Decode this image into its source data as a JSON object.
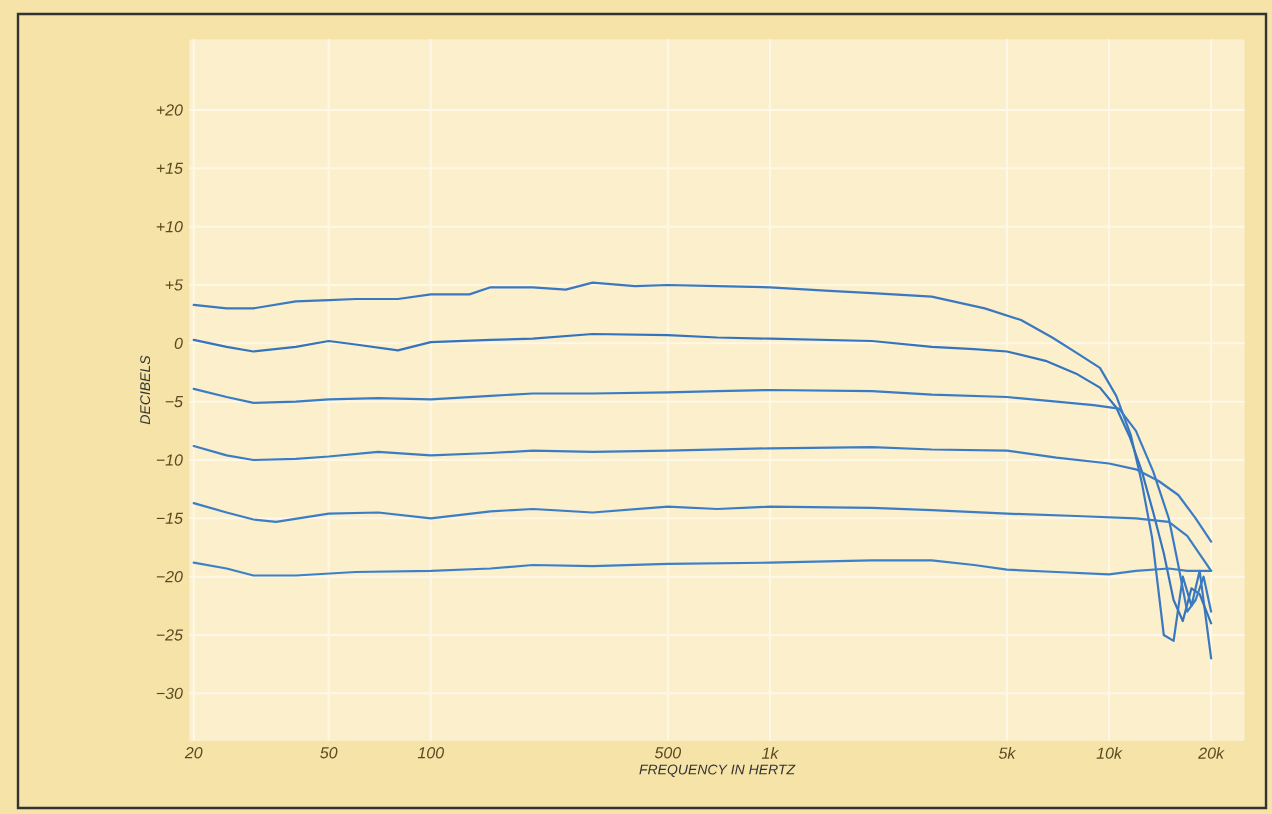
{
  "chart_data": {
    "type": "line",
    "xlabel": "FREQUENCY IN HERTZ",
    "ylabel": "DECIBELS",
    "log": "x",
    "grid": true,
    "marker": "none",
    "line_style": "solid",
    "xlim": [
      19.5,
      25000
    ],
    "ylim": [
      -34,
      26
    ],
    "xticks": [
      20,
      50,
      100,
      500,
      {
        "value": 1000,
        "label": "1k"
      },
      {
        "value": 5000,
        "label": "5k"
      },
      {
        "value": 10000,
        "label": "10k"
      },
      {
        "value": 20000,
        "label": "20k"
      }
    ],
    "yticks": [
      {
        "value": 20,
        "label": "+20"
      },
      {
        "value": 15,
        "label": "+15"
      },
      {
        "value": 10,
        "label": "+10"
      },
      {
        "value": 5,
        "label": "+5"
      },
      0,
      {
        "value": -5,
        "label": "−5"
      },
      {
        "value": -10,
        "label": "−10"
      },
      {
        "value": -15,
        "label": "−15"
      },
      {
        "value": -20,
        "label": "−20"
      },
      {
        "value": -25,
        "label": "−25"
      },
      {
        "value": -30,
        "label": "−30"
      }
    ],
    "series": [
      {
        "color": "#3a78c0",
        "x": [
          20,
          25,
          30,
          40,
          50,
          60,
          80,
          100,
          130,
          150,
          200,
          250,
          300,
          400,
          500,
          700,
          1000,
          1500,
          2000,
          3000,
          4300,
          5500,
          6800,
          8000,
          9400,
          10500,
          11600,
          12500,
          13400,
          14500,
          15500,
          16500,
          17500,
          18500,
          20000
        ],
        "values": [
          3.3,
          3.0,
          3.0,
          3.6,
          3.7,
          3.8,
          3.8,
          4.2,
          4.2,
          4.8,
          4.8,
          4.6,
          5.2,
          4.9,
          5.0,
          4.9,
          4.8,
          4.5,
          4.3,
          4.0,
          3.0,
          2.0,
          0.5,
          -0.8,
          -2.1,
          -4.5,
          -7.9,
          -12,
          -16.7,
          -25,
          -25.5,
          -20,
          -22.5,
          -19.5,
          -27
        ]
      },
      {
        "color": "#3474bd",
        "x": [
          20,
          25,
          30,
          40,
          50,
          60,
          80,
          100,
          150,
          200,
          300,
          500,
          700,
          1000,
          2000,
          3000,
          4000,
          5000,
          6500,
          8000,
          9400,
          10500,
          11500,
          12500,
          13500,
          14500,
          15500,
          16500,
          17500,
          18500,
          20000
        ],
        "values": [
          0.3,
          -0.3,
          -0.7,
          -0.3,
          0.2,
          -0.1,
          -0.6,
          0.1,
          0.3,
          0.4,
          0.8,
          0.7,
          0.5,
          0.4,
          0.2,
          -0.3,
          -0.5,
          -0.7,
          -1.5,
          -2.6,
          -3.8,
          -5.5,
          -8,
          -11,
          -14.5,
          -18,
          -22,
          -23.8,
          -21,
          -21.5,
          -24
        ]
      },
      {
        "color": "#3a7cc4",
        "x": [
          20,
          25,
          30,
          40,
          50,
          70,
          100,
          150,
          200,
          300,
          500,
          700,
          1000,
          2000,
          3000,
          5000,
          7000,
          9000,
          10700,
          12000,
          13500,
          15000,
          16000,
          17000,
          18000,
          19000,
          20000
        ],
        "values": [
          -3.9,
          -4.6,
          -5.1,
          -5.0,
          -4.8,
          -4.7,
          -4.8,
          -4.5,
          -4.3,
          -4.3,
          -4.2,
          -4.1,
          -4.0,
          -4.1,
          -4.4,
          -4.6,
          -5.0,
          -5.3,
          -5.6,
          -7.5,
          -11,
          -15,
          -19,
          -23,
          -22,
          -20,
          -23
        ]
      },
      {
        "color": "#3b7dc5",
        "x": [
          20,
          25,
          30,
          40,
          50,
          70,
          100,
          150,
          200,
          300,
          500,
          1000,
          2000,
          3000,
          5000,
          7000,
          10000,
          12000,
          14000,
          16000,
          18000,
          20000
        ],
        "values": [
          -8.8,
          -9.6,
          -10,
          -9.9,
          -9.7,
          -9.3,
          -9.6,
          -9.4,
          -9.2,
          -9.3,
          -9.2,
          -9.0,
          -8.9,
          -9.1,
          -9.2,
          -9.8,
          -10.3,
          -10.8,
          -11.8,
          -13,
          -15,
          -17
        ]
      },
      {
        "color": "#3b7ec6",
        "x": [
          20,
          25,
          30,
          35,
          50,
          70,
          100,
          150,
          200,
          300,
          500,
          700,
          1000,
          2000,
          3000,
          5000,
          8000,
          12000,
          15000,
          17000,
          20000
        ],
        "values": [
          -13.7,
          -14.5,
          -15.1,
          -15.3,
          -14.6,
          -14.5,
          -15.0,
          -14.4,
          -14.2,
          -14.5,
          -14.0,
          -14.2,
          -14.0,
          -14.1,
          -14.3,
          -14.6,
          -14.8,
          -15.0,
          -15.3,
          -16.5,
          -19.5
        ]
      },
      {
        "color": "#3c80c8",
        "x": [
          20,
          25,
          30,
          40,
          60,
          100,
          150,
          200,
          300,
          500,
          1000,
          2000,
          3000,
          4000,
          5000,
          7000,
          10000,
          12000,
          15000,
          17000,
          20000
        ],
        "values": [
          -18.8,
          -19.3,
          -19.9,
          -19.9,
          -19.6,
          -19.5,
          -19.3,
          -19.0,
          -19.1,
          -18.9,
          -18.8,
          -18.6,
          -18.6,
          -19.0,
          -19.4,
          -19.6,
          -19.8,
          -19.5,
          -19.3,
          -19.5,
          -19.5
        ]
      }
    ]
  }
}
